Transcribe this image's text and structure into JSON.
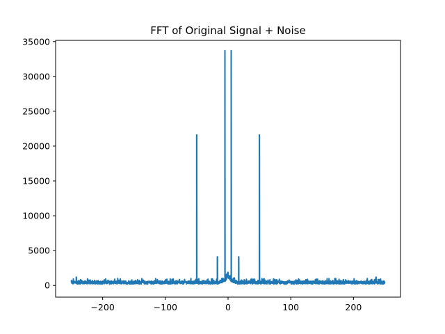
{
  "chart_data": {
    "type": "line",
    "title": "FFT of Original Signal + Noise",
    "xlabel": "",
    "ylabel": "",
    "xlim": [
      -275,
      275
    ],
    "ylim": [
      -1675,
      35175
    ],
    "xticks": [
      -200,
      -100,
      0,
      100,
      200
    ],
    "xtick_labels": [
      "−200",
      "−100",
      "0",
      "100",
      "200"
    ],
    "yticks": [
      0,
      5000,
      10000,
      15000,
      20000,
      25000,
      30000,
      35000
    ],
    "ytick_labels": [
      "0",
      "5000",
      "10000",
      "15000",
      "20000",
      "25000",
      "30000",
      "35000"
    ],
    "grid": false,
    "line_color": "#1f77b4",
    "series": [
      {
        "x_range": [
          -250,
          250
        ],
        "noise_floor_range": [
          200,
          1000
        ],
        "peaks": [
          {
            "x": -242,
            "y": 1200
          },
          {
            "x": -50,
            "y": 21600
          },
          {
            "x": -17,
            "y": 4100
          },
          {
            "x": -5,
            "y": 33700
          },
          {
            "x": 5,
            "y": 33700
          },
          {
            "x": 17,
            "y": 4100
          },
          {
            "x": 50,
            "y": 21600
          },
          {
            "x": 236,
            "y": 1200
          }
        ]
      }
    ]
  }
}
